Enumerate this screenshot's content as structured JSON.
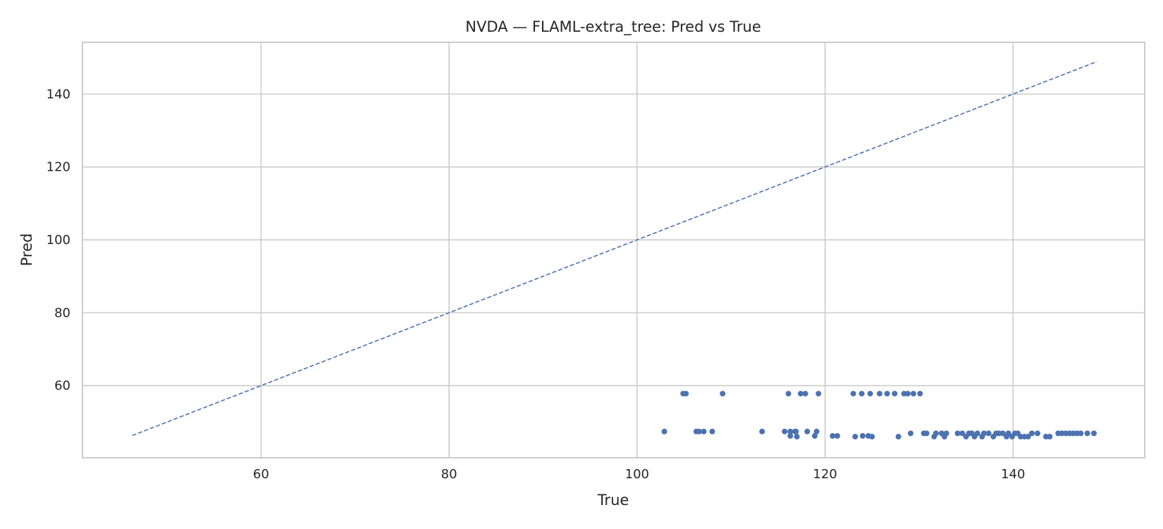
{
  "chart_data": {
    "type": "scatter",
    "title": "NVDA — FLAML-extra_tree: Pred vs True",
    "xlabel": "True",
    "ylabel": "Pred",
    "xlim": [
      41,
      154
    ],
    "ylim": [
      40.2,
      154.2
    ],
    "xticks": [
      60,
      80,
      100,
      120,
      140
    ],
    "yticks": [
      60,
      80,
      100,
      120,
      140
    ],
    "grid": true,
    "colors": {
      "points": "#4c72b0",
      "reference_line": "#4c72b0",
      "grid": "#cccccc",
      "frame": "#cccccc"
    },
    "reference_line": {
      "style": "dashed",
      "x": [
        46.3,
        148.9
      ],
      "y": [
        46.3,
        148.9
      ]
    },
    "points": {
      "x": [
        102.9,
        104.9,
        105.2,
        106.3,
        106.6,
        107.1,
        108.0,
        109.1,
        113.3,
        115.7,
        116.1,
        116.3,
        116.3,
        116.8,
        116.9,
        117.0,
        117.4,
        117.9,
        118.1,
        118.9,
        119.1,
        119.3,
        120.8,
        121.3,
        123.0,
        123.2,
        123.9,
        124.0,
        124.6,
        124.8,
        125.0,
        125.8,
        126.6,
        127.4,
        127.8,
        128.4,
        128.8,
        129.1,
        129.4,
        130.1,
        130.5,
        130.8,
        131.6,
        131.8,
        132.4,
        132.7,
        132.9,
        134.1,
        134.6,
        135.0,
        135.3,
        135.6,
        135.9,
        136.2,
        136.7,
        136.9,
        137.4,
        137.9,
        138.2,
        138.5,
        138.9,
        139.3,
        139.5,
        139.9,
        140.2,
        140.5,
        140.8,
        141.2,
        141.6,
        142.0,
        142.6,
        143.5,
        143.9,
        144.8,
        145.2,
        145.6,
        146.0,
        146.4,
        146.8,
        147.2,
        147.9,
        148.6
      ],
      "y": [
        47.4,
        57.8,
        57.8,
        47.4,
        47.4,
        47.4,
        47.4,
        57.8,
        47.4,
        47.4,
        57.8,
        47.4,
        46.2,
        47.4,
        47.4,
        46.0,
        57.8,
        57.8,
        47.4,
        46.2,
        47.4,
        57.8,
        46.2,
        46.2,
        57.8,
        46.0,
        57.8,
        46.2,
        46.2,
        57.8,
        46.0,
        57.8,
        57.8,
        57.8,
        46.0,
        57.8,
        57.8,
        46.9,
        57.8,
        57.8,
        46.9,
        46.9,
        46.0,
        46.9,
        46.9,
        46.0,
        46.9,
        46.9,
        46.9,
        46.0,
        46.9,
        46.9,
        46.0,
        46.9,
        46.0,
        46.9,
        46.9,
        46.0,
        46.9,
        46.9,
        46.9,
        46.0,
        46.9,
        46.0,
        46.9,
        46.9,
        46.0,
        46.0,
        46.0,
        46.9,
        46.9,
        46.0,
        46.0,
        46.9,
        46.9,
        46.9,
        46.9,
        46.9,
        46.9,
        46.9,
        46.9,
        46.9
      ]
    }
  }
}
